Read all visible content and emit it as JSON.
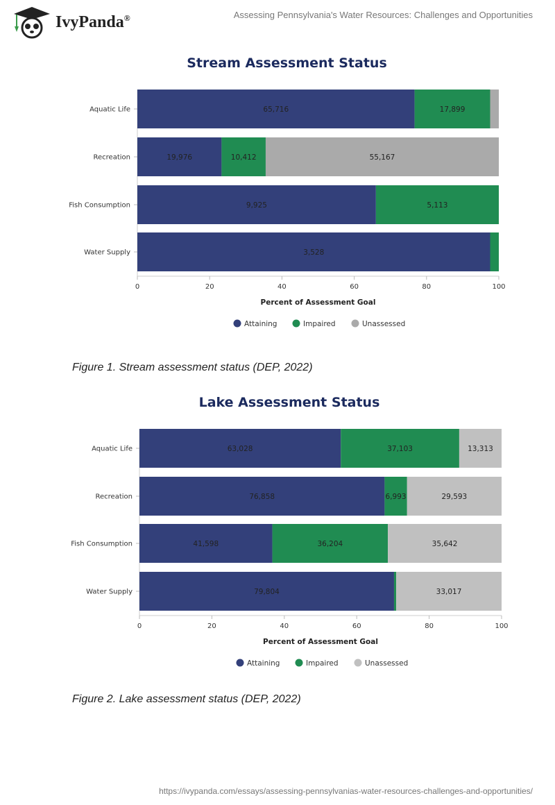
{
  "header": {
    "brand": "IvyPanda",
    "brand_mark": "®",
    "title": "Assessing Pennsylvania's Water Resources: Challenges and Opportunities"
  },
  "footer": {
    "url": "https://ivypanda.com/essays/assessing-pennsylvanias-water-resources-challenges-and-opportunities/"
  },
  "captions": [
    "Figure 1. Stream assessment status (DEP, 2022)",
    "Figure 2. Lake assessment status (DEP, 2022)"
  ],
  "chart_data": [
    {
      "type": "bar",
      "orientation": "horizontal",
      "stacked": true,
      "title": "Stream Assessment Status",
      "xlabel": "Percent of Assessment Goal",
      "ylabel": "",
      "xlim": [
        0,
        100
      ],
      "xticks": [
        "0",
        "20",
        "40",
        "60",
        "80",
        "100"
      ],
      "categories": [
        "Aquatic Life",
        "Recreation",
        "Fish Consumption",
        "Water Supply"
      ],
      "legend_position": "bottom",
      "grid": false,
      "series": [
        {
          "name": "Attaining",
          "color": "#33407a",
          "values": [
            76.7,
            23.3,
            66.0,
            97.6
          ],
          "labels": [
            "65,716",
            "19,976",
            "9,925",
            "3,528"
          ]
        },
        {
          "name": "Impaired",
          "color": "#208c52",
          "values": [
            20.9,
            12.2,
            34.0,
            2.4
          ],
          "labels": [
            "17,899",
            "10,412",
            "5,113",
            null
          ]
        },
        {
          "name": "Unassessed",
          "color": "#aaaaaa",
          "values": [
            2.4,
            64.5,
            0,
            0
          ],
          "labels": [
            null,
            "55,167",
            null,
            null
          ]
        }
      ]
    },
    {
      "type": "bar",
      "orientation": "horizontal",
      "stacked": true,
      "title": "Lake Assessment Status",
      "xlabel": "Percent of Assessment Goal",
      "ylabel": "",
      "xlim": [
        0,
        100
      ],
      "xticks": [
        "0",
        "20",
        "40",
        "60",
        "80",
        "100"
      ],
      "categories": [
        "Aquatic Life",
        "Recreation",
        "Fish Consumption",
        "Water Supply"
      ],
      "legend_position": "bottom",
      "grid": false,
      "series": [
        {
          "name": "Attaining",
          "color": "#33407a",
          "values": [
            55.6,
            67.7,
            36.7,
            70.3
          ],
          "labels": [
            "63,028",
            "76,858",
            "41,598",
            "79,804"
          ]
        },
        {
          "name": "Impaired",
          "color": "#208c52",
          "values": [
            32.7,
            6.2,
            31.9,
            0.6
          ],
          "labels": [
            "37,103",
            "6,993",
            "36,204",
            null
          ]
        },
        {
          "name": "Unassessed",
          "color": "#c0c0c0",
          "values": [
            11.7,
            26.1,
            31.4,
            29.1
          ],
          "labels": [
            "13,313",
            "29,593",
            "35,642",
            "33,017"
          ]
        }
      ]
    }
  ]
}
